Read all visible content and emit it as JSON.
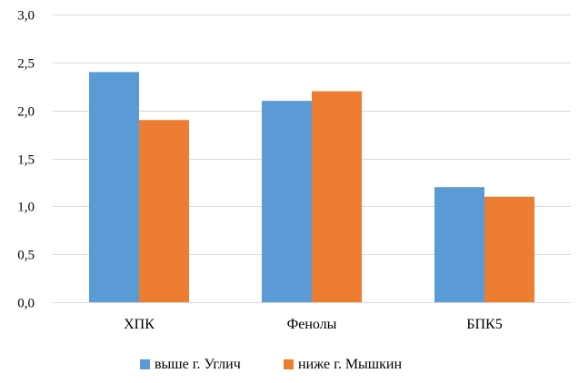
{
  "chart_data": {
    "type": "bar",
    "categories": [
      "ХПК",
      "Фенолы",
      "БПК5"
    ],
    "series": [
      {
        "name": "выше г. Углич",
        "values": [
          2.4,
          2.1,
          1.2
        ],
        "color": "#5B9BD5"
      },
      {
        "name": "ниже г. Мышкин",
        "values": [
          1.9,
          2.2,
          1.1
        ],
        "color": "#ED7D31"
      }
    ],
    "y_ticks": [
      "0,0",
      "0,5",
      "1,0",
      "1,5",
      "2,0",
      "2,5",
      "3,0"
    ],
    "ylim": [
      0,
      3.0
    ],
    "grid": true,
    "grid_color": "#D9D9D9",
    "legend": "bottom"
  }
}
